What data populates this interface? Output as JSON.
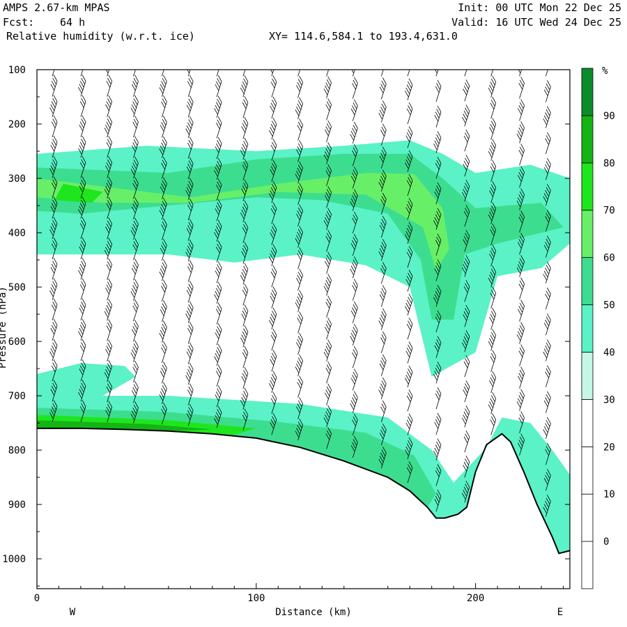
{
  "header": {
    "model": "AMPS 2.67-km MPAS",
    "fcst_label": "Fcst:",
    "fcst_value": "64 h",
    "field": "Relative humidity (w.r.t. ice)",
    "xy_range": "XY= 114.6,584.1 to 193.4,631.0",
    "init": "Init: 00 UTC Mon 22 Dec 25",
    "valid": "Valid: 16 UTC Wed 24 Dec 25"
  },
  "chart_data": {
    "type": "cross-section",
    "title": "Relative humidity (w.r.t. ice)",
    "xlabel": "Distance (km)",
    "ylabel": "Pressure (hPa)",
    "xlim": [
      0,
      243
    ],
    "ylim": [
      1055,
      100
    ],
    "x_ticks": [
      0,
      100,
      200
    ],
    "y_ticks": [
      100,
      200,
      300,
      400,
      500,
      600,
      700,
      800,
      900,
      1000
    ],
    "west_label": "W",
    "east_label": "E",
    "colorbar": {
      "unit": "%",
      "levels": [
        0,
        10,
        20,
        30,
        40,
        50,
        60,
        70,
        80,
        90
      ],
      "colors": [
        "#ffffff",
        "#ffffff",
        "#ffffff",
        "#ffffff",
        "#c5f7e5",
        "#5af2c6",
        "#3ddd90",
        "#68ef68",
        "#1ee61e",
        "#14b414",
        "#0a8c2a"
      ]
    },
    "terrain": [
      [
        0,
        760
      ],
      [
        20,
        760
      ],
      [
        40,
        762
      ],
      [
        60,
        765
      ],
      [
        80,
        770
      ],
      [
        100,
        778
      ],
      [
        120,
        795
      ],
      [
        140,
        820
      ],
      [
        160,
        850
      ],
      [
        170,
        875
      ],
      [
        178,
        905
      ],
      [
        182,
        925
      ],
      [
        186,
        925
      ],
      [
        192,
        918
      ],
      [
        196,
        905
      ],
      [
        200,
        840
      ],
      [
        205,
        790
      ],
      [
        212,
        770
      ],
      [
        216,
        785
      ],
      [
        222,
        840
      ],
      [
        228,
        900
      ],
      [
        235,
        960
      ],
      [
        238,
        990
      ],
      [
        243,
        985
      ]
    ],
    "rh_bands": [
      {
        "rh": 40,
        "pts": [
          [
            0,
            255
          ],
          [
            50,
            240
          ],
          [
            100,
            250
          ],
          [
            140,
            240
          ],
          [
            170,
            230
          ],
          [
            185,
            255
          ],
          [
            200,
            290
          ],
          [
            225,
            275
          ],
          [
            243,
            300
          ],
          [
            243,
            420
          ],
          [
            230,
            465
          ],
          [
            210,
            480
          ],
          [
            200,
            620
          ],
          [
            180,
            665
          ],
          [
            170,
            500
          ],
          [
            150,
            460
          ],
          [
            120,
            440
          ],
          [
            90,
            455
          ],
          [
            60,
            440
          ],
          [
            20,
            440
          ],
          [
            0,
            440
          ]
        ]
      },
      {
        "rh": 50,
        "pts": [
          [
            0,
            280
          ],
          [
            60,
            290
          ],
          [
            100,
            265
          ],
          [
            140,
            255
          ],
          [
            170,
            255
          ],
          [
            185,
            300
          ],
          [
            200,
            355
          ],
          [
            230,
            345
          ],
          [
            240,
            390
          ],
          [
            210,
            420
          ],
          [
            195,
            440
          ],
          [
            190,
            560
          ],
          [
            180,
            560
          ],
          [
            175,
            450
          ],
          [
            160,
            365
          ],
          [
            130,
            340
          ],
          [
            100,
            335
          ],
          [
            60,
            350
          ],
          [
            20,
            365
          ],
          [
            0,
            360
          ]
        ]
      },
      {
        "rh": 60,
        "pts": [
          [
            0,
            300
          ],
          [
            40,
            320
          ],
          [
            70,
            335
          ],
          [
            110,
            310
          ],
          [
            150,
            290
          ],
          [
            172,
            292
          ],
          [
            185,
            355
          ],
          [
            188,
            430
          ],
          [
            182,
            470
          ],
          [
            176,
            390
          ],
          [
            150,
            330
          ],
          [
            110,
            325
          ],
          [
            70,
            345
          ],
          [
            30,
            345
          ],
          [
            0,
            335
          ]
        ]
      },
      {
        "rh": 70,
        "pts": [
          [
            12,
            310
          ],
          [
            30,
            325
          ],
          [
            25,
            345
          ],
          [
            8,
            340
          ]
        ]
      },
      {
        "rh": 40,
        "pts": [
          [
            0,
            660
          ],
          [
            20,
            640
          ],
          [
            40,
            645
          ],
          [
            45,
            665
          ],
          [
            30,
            700
          ],
          [
            0,
            710
          ]
        ]
      },
      {
        "rh": 40,
        "pts": [
          [
            0,
            700
          ],
          [
            60,
            700
          ],
          [
            120,
            715
          ],
          [
            160,
            740
          ],
          [
            180,
            800
          ],
          [
            190,
            860
          ],
          [
            205,
            795
          ],
          [
            212,
            740
          ],
          [
            225,
            750
          ],
          [
            235,
            800
          ],
          [
            243,
            845
          ],
          [
            243,
            985
          ],
          [
            238,
            990
          ],
          [
            235,
            960
          ],
          [
            228,
            900
          ],
          [
            222,
            840
          ],
          [
            216,
            785
          ],
          [
            212,
            770
          ],
          [
            205,
            790
          ],
          [
            200,
            840
          ],
          [
            196,
            905
          ],
          [
            192,
            918
          ],
          [
            186,
            925
          ],
          [
            182,
            925
          ],
          [
            178,
            905
          ],
          [
            170,
            875
          ],
          [
            160,
            850
          ],
          [
            140,
            820
          ],
          [
            120,
            795
          ],
          [
            100,
            778
          ],
          [
            80,
            770
          ],
          [
            60,
            765
          ],
          [
            40,
            762
          ],
          [
            20,
            760
          ],
          [
            0,
            760
          ]
        ]
      },
      {
        "rh": 50,
        "pts": [
          [
            0,
            722
          ],
          [
            60,
            730
          ],
          [
            110,
            748
          ],
          [
            150,
            768
          ],
          [
            172,
            810
          ],
          [
            182,
            880
          ],
          [
            178,
            905
          ],
          [
            170,
            875
          ],
          [
            160,
            850
          ],
          [
            140,
            820
          ],
          [
            120,
            795
          ],
          [
            100,
            778
          ],
          [
            80,
            770
          ],
          [
            60,
            765
          ],
          [
            40,
            762
          ],
          [
            20,
            760
          ],
          [
            0,
            760
          ]
        ]
      },
      {
        "rh": 70,
        "pts": [
          [
            0,
            735
          ],
          [
            60,
            745
          ],
          [
            100,
            760
          ],
          [
            90,
            772
          ],
          [
            80,
            770
          ],
          [
            60,
            765
          ],
          [
            40,
            762
          ],
          [
            20,
            760
          ],
          [
            0,
            760
          ]
        ]
      },
      {
        "rh": 80,
        "pts": [
          [
            0,
            745
          ],
          [
            50,
            752
          ],
          [
            80,
            762
          ],
          [
            60,
            765
          ],
          [
            40,
            762
          ],
          [
            20,
            760
          ],
          [
            0,
            760
          ]
        ]
      }
    ],
    "wind_columns_km": [
      7,
      20,
      32,
      44,
      57,
      69,
      82,
      94,
      107,
      119,
      132,
      144,
      157,
      169,
      182,
      195,
      207,
      220,
      232
    ],
    "wind_barb_count_per_column": 18
  }
}
